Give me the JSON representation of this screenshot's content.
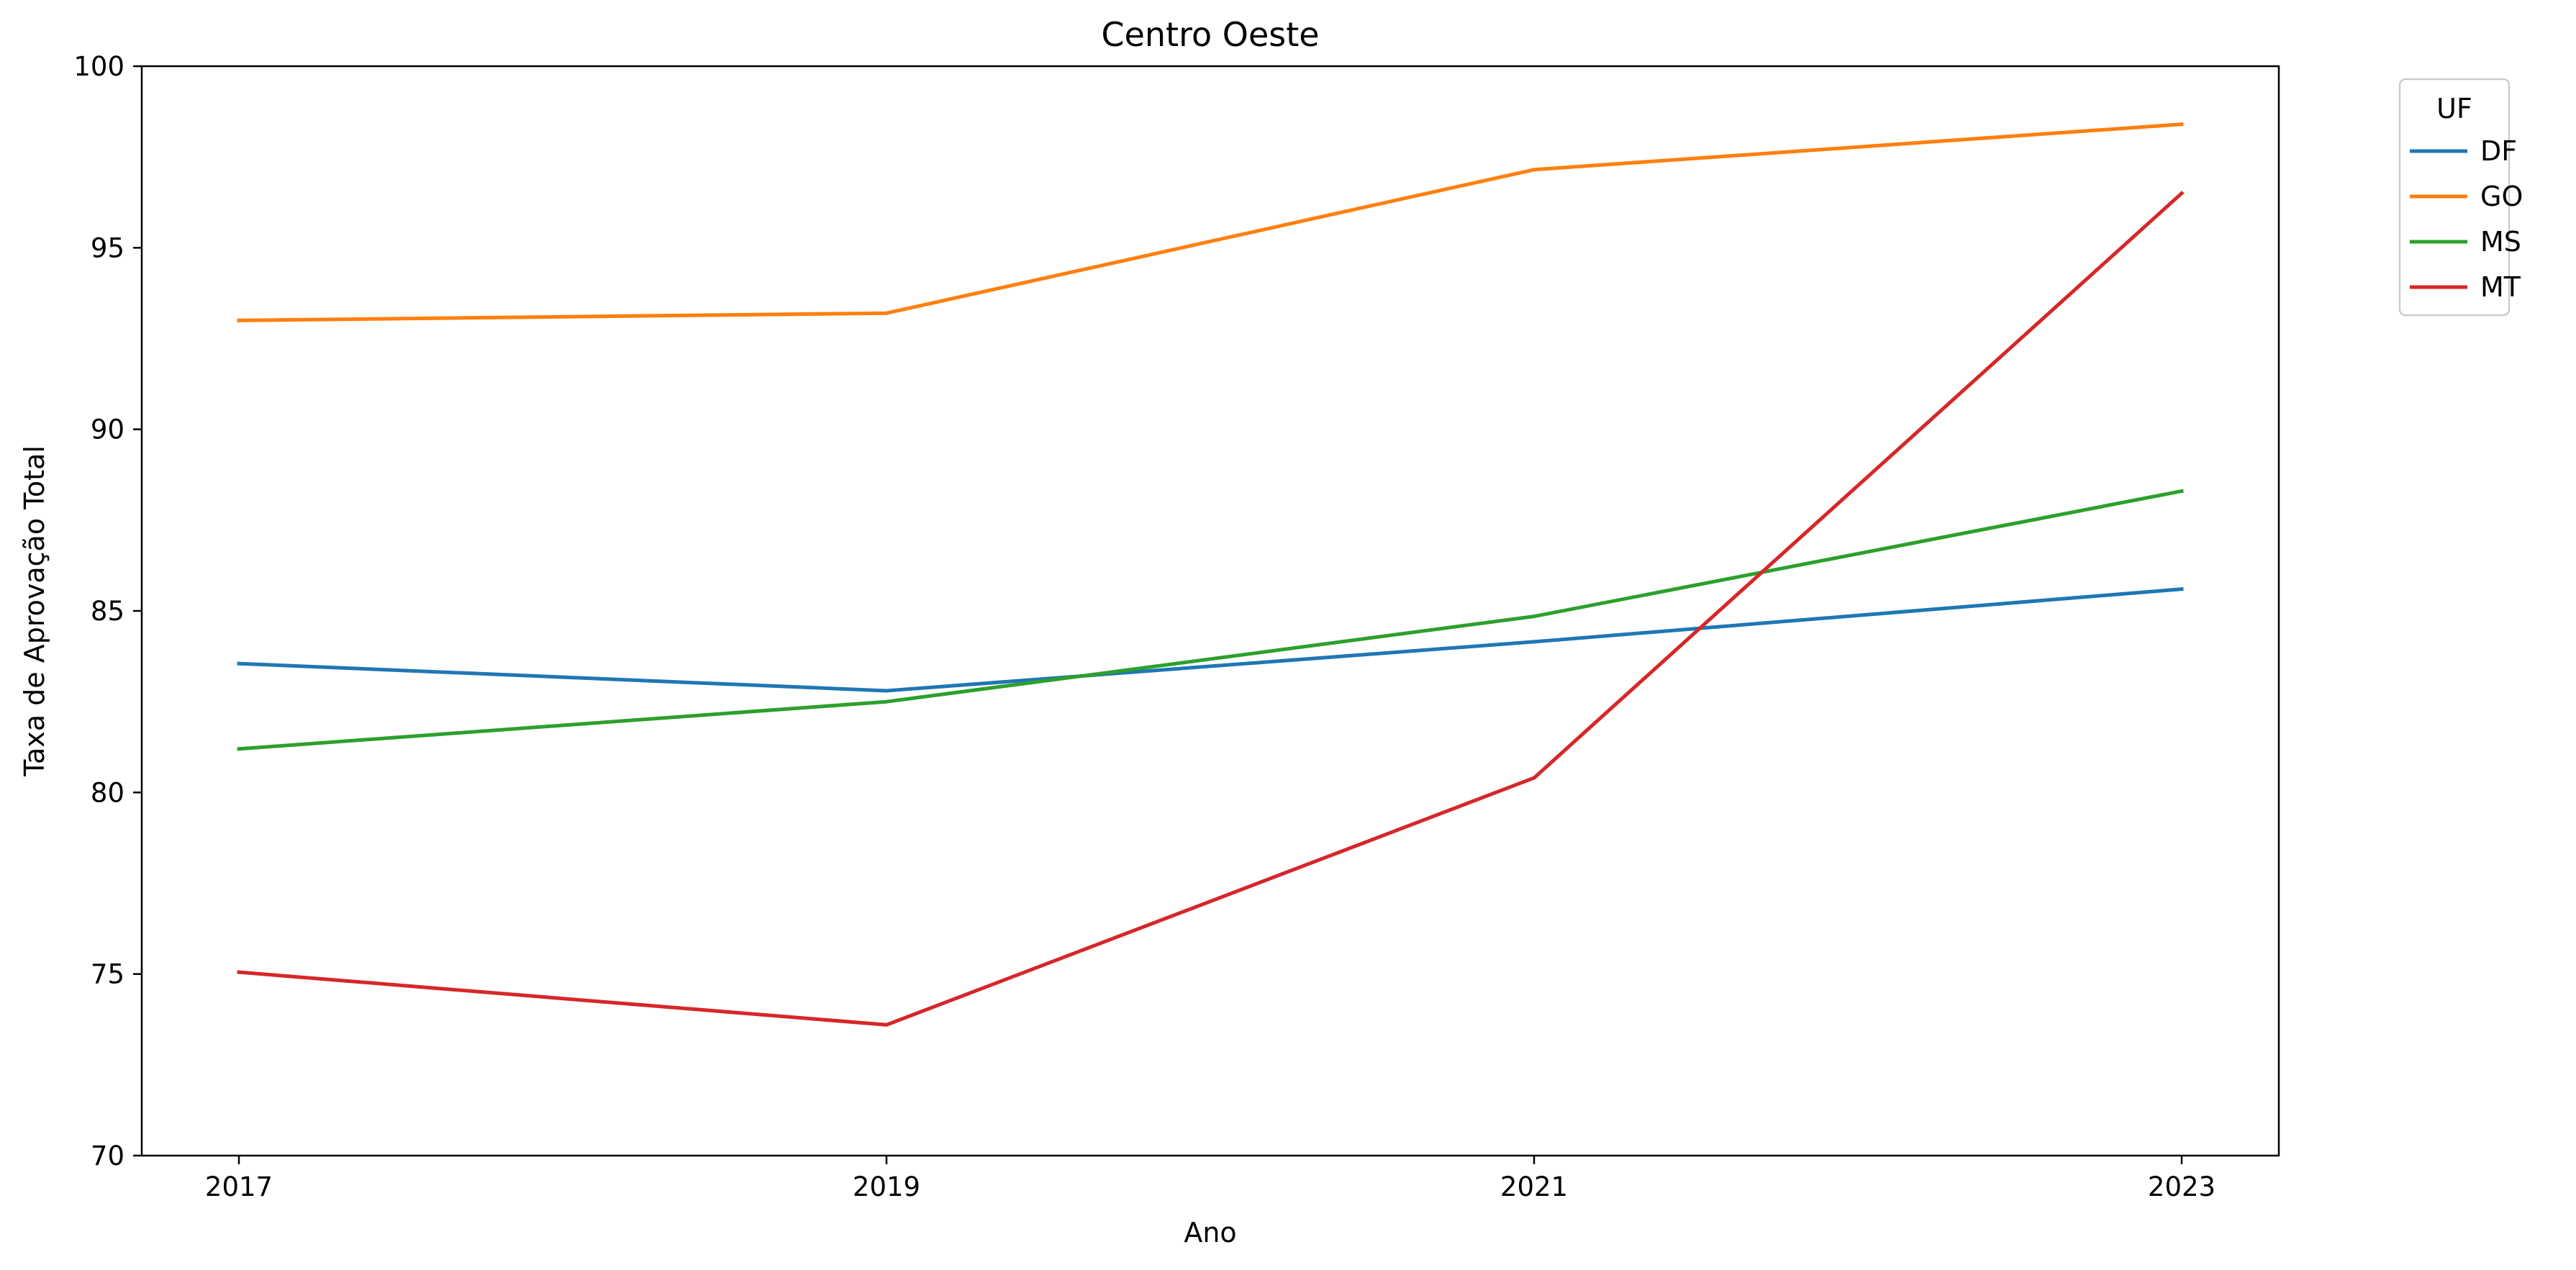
{
  "chart_data": {
    "type": "line",
    "title": "Centro Oeste",
    "xlabel": "Ano",
    "ylabel": "Taxa de Aprovação Total",
    "x": [
      2017,
      2019,
      2021,
      2023
    ],
    "xticks": [
      "2017",
      "2019",
      "2021",
      "2023"
    ],
    "ylim": [
      70,
      100
    ],
    "yticks": [
      70,
      75,
      80,
      85,
      90,
      95,
      100
    ],
    "xlim": [
      2016.7,
      2023.3
    ],
    "grid": false,
    "legend": {
      "title": "UF",
      "position": "outside-top-right"
    },
    "series": [
      {
        "name": "DF",
        "color": "#1f77b4",
        "values": [
          83.55,
          82.8,
          84.15,
          85.6
        ]
      },
      {
        "name": "GO",
        "color": "#ff7f0e",
        "values": [
          93.0,
          93.2,
          97.15,
          98.4
        ]
      },
      {
        "name": "MS",
        "color": "#2ca02c",
        "values": [
          81.2,
          82.5,
          84.85,
          88.3
        ]
      },
      {
        "name": "MT",
        "color": "#d62728",
        "values": [
          75.05,
          73.6,
          80.4,
          96.5
        ]
      }
    ]
  }
}
